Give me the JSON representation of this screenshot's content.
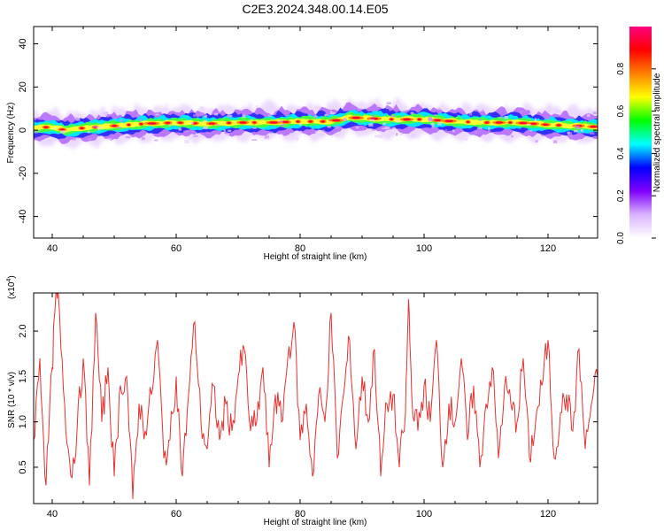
{
  "figure": {
    "title": "C2E3.2024.348.00.14.E05"
  },
  "chart_data": [
    {
      "type": "heatmap",
      "title": "C2E3.2024.348.00.14.E05",
      "xlabel": "Height of straight line (km)",
      "ylabel": "Frequency (Hz)",
      "xlim": [
        37,
        128
      ],
      "ylim": [
        -50,
        48
      ],
      "xticks": [
        40,
        60,
        80,
        100,
        120
      ],
      "xtick_labels": [
        "40",
        "60",
        "80",
        "100",
        "120"
      ],
      "yticks": [
        -40,
        -20,
        0,
        20,
        40
      ],
      "ytick_labels": [
        "-40",
        "-20",
        "0",
        "20",
        "40"
      ],
      "ridge": {
        "description": "Dominant frequency ridge (Hz) vs height (km)",
        "x": [
          37,
          40,
          42,
          45,
          50,
          55,
          60,
          65,
          70,
          75,
          80,
          85,
          88,
          90,
          95,
          100,
          105,
          110,
          115,
          120,
          125,
          128
        ],
        "y": [
          1,
          1.5,
          0,
          1,
          2,
          3,
          3.5,
          3,
          3.5,
          3.5,
          4,
          4,
          6,
          5.5,
          5,
          5,
          4,
          3.5,
          3.5,
          2.5,
          2,
          1.5
        ]
      },
      "colorbar": {
        "label": "Normalized spectral amplitude",
        "range": [
          0,
          1
        ],
        "ticks": [
          0.0,
          0.2,
          0.4,
          0.6,
          0.8
        ],
        "tick_labels": [
          "0.0",
          "0.2",
          "0.4",
          "0.6",
          "0.8"
        ],
        "colors": [
          "#ffffff",
          "#d9b3ff",
          "#8000ff",
          "#0000ff",
          "#00ffff",
          "#00ff00",
          "#ffff00",
          "#ff8000",
          "#ff0000",
          "#ff0080"
        ]
      }
    },
    {
      "type": "line",
      "xlabel": "Height of straight line (km)",
      "ylabel": "SNR (10 * v/v)",
      "y_multiplier": "(x10",
      "y_multiplier_exp": "4",
      "y_multiplier_close": ")",
      "xlim": [
        37,
        128
      ],
      "ylim": [
        0.1,
        2.42
      ],
      "xticks": [
        40,
        60,
        80,
        100,
        120
      ],
      "xtick_labels": [
        "40",
        "60",
        "80",
        "100",
        "120"
      ],
      "yticks": [
        0.5,
        1.0,
        1.5,
        2.0
      ],
      "ytick_labels": [
        "0.5",
        "1.0",
        "1.5",
        "2.0"
      ],
      "series": [
        {
          "name": "SNR",
          "color": "#e83030",
          "x": [
            37,
            38,
            39,
            40,
            40.5,
            41,
            42,
            43,
            44,
            45,
            46,
            47,
            48,
            49,
            50,
            51,
            52,
            53,
            54,
            55,
            56,
            57,
            58,
            59,
            60,
            61,
            62,
            63,
            64,
            65,
            66,
            67,
            68,
            69,
            70,
            71,
            72,
            73,
            74,
            75,
            76,
            77,
            78,
            79,
            80,
            81,
            82,
            83,
            84,
            85,
            86,
            87,
            88,
            89,
            90,
            91,
            92,
            93,
            94,
            95,
            96,
            97,
            97.5,
            98,
            99,
            100,
            101,
            102,
            103,
            104,
            105,
            106,
            107,
            108,
            109,
            110,
            111,
            112,
            113,
            114,
            115,
            116,
            117,
            118,
            119,
            120,
            121,
            122,
            123,
            124,
            125,
            126,
            127,
            128
          ],
          "y": [
            0.8,
            1.7,
            0.3,
            1.6,
            2.3,
            2.4,
            1.2,
            0.4,
            0.9,
            1.7,
            0.3,
            2.2,
            1.0,
            1.6,
            0.4,
            1.4,
            1.5,
            0.15,
            1.2,
            0.9,
            1.3,
            1.9,
            0.6,
            0.8,
            1.5,
            0.4,
            1.3,
            2.1,
            1.0,
            0.7,
            1.4,
            0.8,
            1.2,
            0.9,
            1.5,
            1.8,
            0.9,
            1.0,
            1.6,
            0.5,
            1.3,
            1.0,
            1.7,
            2.1,
            0.8,
            1.2,
            0.4,
            1.3,
            1.0,
            2.2,
            0.6,
            1.3,
            1.9,
            0.7,
            1.5,
            1.0,
            1.8,
            0.4,
            1.2,
            1.3,
            0.5,
            1.1,
            2.35,
            1.3,
            0.9,
            1.4,
            1.0,
            1.9,
            0.5,
            1.2,
            1.0,
            1.7,
            0.8,
            1.4,
            0.5,
            1.2,
            1.6,
            0.6,
            1.4,
            1.2,
            1.0,
            1.7,
            0.6,
            1.0,
            1.4,
            1.9,
            0.6,
            1.1,
            1.3,
            0.9,
            1.8,
            0.7,
            1.2,
            1.5
          ]
        }
      ]
    }
  ]
}
